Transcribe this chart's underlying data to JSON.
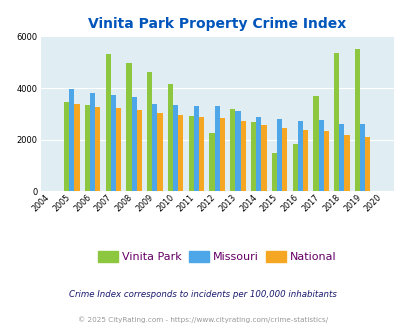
{
  "title": "Vinita Park Property Crime Index",
  "years": [
    2004,
    2005,
    2006,
    2007,
    2008,
    2009,
    2010,
    2011,
    2012,
    2013,
    2014,
    2015,
    2016,
    2017,
    2018,
    2019,
    2020
  ],
  "vinita_park": [
    null,
    3450,
    3350,
    5300,
    4950,
    4600,
    4150,
    2900,
    2250,
    3200,
    2700,
    1480,
    1850,
    3700,
    5350,
    5500,
    null
  ],
  "missouri": [
    null,
    3980,
    3820,
    3730,
    3650,
    3380,
    3330,
    3290,
    3290,
    3100,
    2870,
    2820,
    2720,
    2780,
    2620,
    2600,
    null
  ],
  "national": [
    null,
    3370,
    3280,
    3210,
    3150,
    3020,
    2940,
    2880,
    2830,
    2720,
    2570,
    2460,
    2380,
    2340,
    2200,
    2110,
    null
  ],
  "colors": {
    "vinita_park": "#8dc63f",
    "missouri": "#4da6e8",
    "national": "#f5a623"
  },
  "ylim": [
    0,
    6000
  ],
  "yticks": [
    0,
    2000,
    4000,
    6000
  ],
  "background_color": "#e0eef4",
  "title_color": "#0055bb",
  "legend_labels": [
    "Vinita Park",
    "Missouri",
    "National"
  ],
  "legend_label_color": "#660066",
  "footnote1": "Crime Index corresponds to incidents per 100,000 inhabitants",
  "footnote2": "© 2025 CityRating.com - https://www.cityrating.com/crime-statistics/",
  "footnote1_color": "#1a1a6e",
  "footnote2_color": "#999999"
}
